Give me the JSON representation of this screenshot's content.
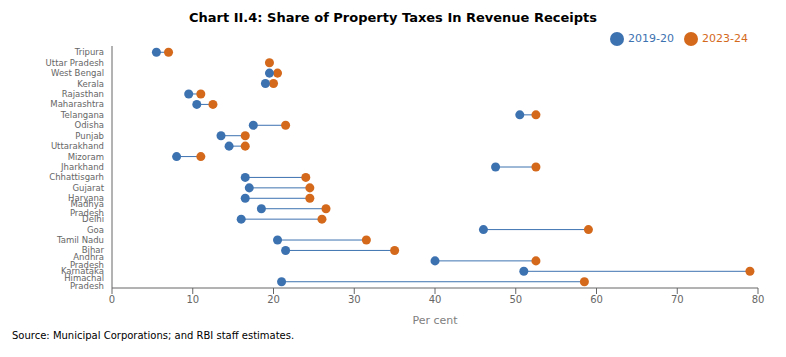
{
  "chart_data": {
    "type": "dumbbell",
    "title": "Chart II.4: Share of Property Taxes In Revenue Receipts",
    "xlabel": "Per cent",
    "annotations": [
      "Source: Municipal Corporations; and RBI staff estimates."
    ],
    "categories": [
      "Tripura",
      "Uttar Pradesh",
      "West Bengal",
      "Kerala",
      "Rajasthan",
      "Maharashtra",
      "Telangana",
      "Odisha",
      "Punjab",
      "Uttarakhand",
      "Mizoram",
      "Jharkhand",
      "Chhattisgarh",
      "Gujarat",
      "Haryana",
      "Madhya Pradesh",
      "Delhi",
      "Goa",
      "Tamil Nadu",
      "Bihar",
      "Andhra Pradesh",
      "Karnataka",
      "Himachal Pradesh"
    ],
    "series": [
      {
        "name": "2019-20",
        "color": "#3d72b0",
        "values": [
          5.5,
          null,
          19.5,
          19.0,
          9.5,
          10.5,
          50.5,
          17.5,
          13.5,
          14.5,
          8.0,
          47.5,
          16.5,
          17.0,
          16.5,
          18.5,
          16.0,
          46.0,
          20.5,
          21.5,
          40.0,
          51.0,
          21.0
        ]
      },
      {
        "name": "2023-24",
        "color": "#d4691c",
        "values": [
          7.0,
          19.5,
          20.5,
          20.0,
          11.0,
          12.5,
          52.5,
          21.5,
          16.5,
          16.5,
          11.0,
          52.5,
          24.0,
          24.5,
          24.5,
          26.5,
          26.0,
          59.0,
          31.5,
          35.0,
          52.5,
          79.0,
          58.5
        ]
      }
    ],
    "xlim": [
      0,
      80
    ],
    "xticks": [
      0,
      10,
      20,
      30,
      40,
      50,
      60,
      70,
      80
    ],
    "grid": false,
    "legend": "top-right"
  }
}
